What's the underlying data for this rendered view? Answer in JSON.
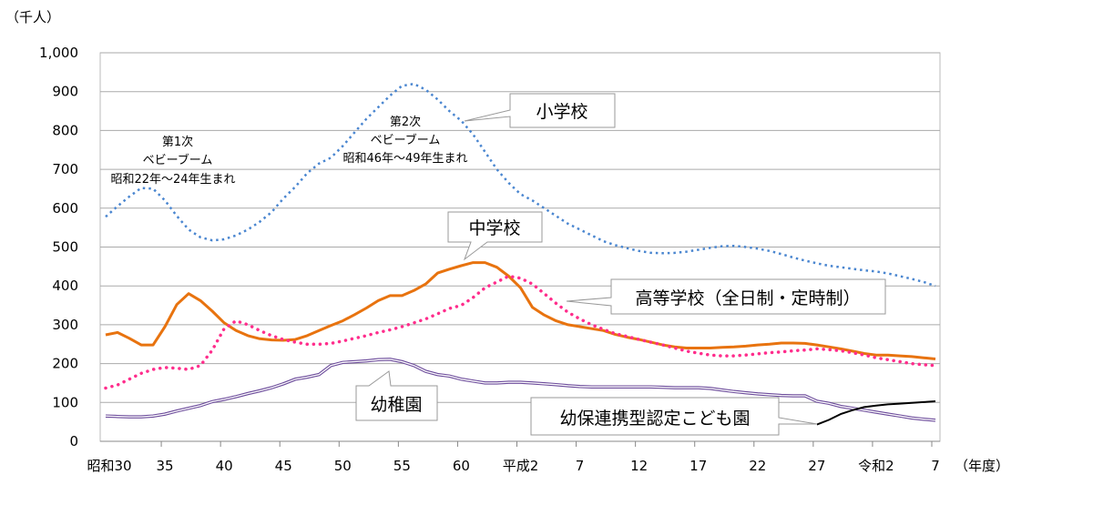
{
  "chart_data": {
    "type": "line",
    "unit_label": "（千人）",
    "xlabel": "（年度）",
    "ylim": [
      0,
      1000
    ],
    "yticks": [
      0,
      100,
      200,
      300,
      400,
      500,
      600,
      700,
      800,
      900,
      1000
    ],
    "ytick_labels": [
      "0",
      "100",
      "200",
      "300",
      "400",
      "500",
      "600",
      "700",
      "800",
      "900",
      "1,000"
    ],
    "grid": "horizontal",
    "xlim": [
      1955,
      2025
    ],
    "xticks": [
      1955,
      1960,
      1965,
      1970,
      1975,
      1980,
      1985,
      1990,
      1995,
      2000,
      2005,
      2010,
      2015,
      2020,
      2025
    ],
    "xtick_labels": [
      "昭和30",
      "35",
      "40",
      "45",
      "50",
      "55",
      "60",
      "平成2",
      "7",
      "12",
      "17",
      "22",
      "27",
      "令和2",
      "7"
    ],
    "years_first": 1955,
    "series": [
      {
        "name": "小学校",
        "color": "#4a86d0",
        "style": "dotted",
        "values": [
          578,
          605,
          630,
          652,
          650,
          620,
          580,
          545,
          525,
          517,
          520,
          530,
          545,
          565,
          590,
          625,
          655,
          690,
          715,
          730,
          760,
          795,
          830,
          860,
          890,
          915,
          920,
          905,
          880,
          850,
          825,
          790,
          745,
          700,
          665,
          636,
          620,
          600,
          580,
          560,
          545,
          530,
          515,
          505,
          497,
          490,
          485,
          484,
          485,
          488,
          493,
          498,
          502,
          503,
          500,
          496,
          490,
          482,
          473,
          465,
          458,
          452,
          448,
          444,
          440,
          437,
          432,
          425,
          418,
          410,
          400
        ]
      },
      {
        "name": "中学校",
        "color": "#e8730f",
        "style": "solid",
        "values": [
          274,
          280,
          265,
          248,
          248,
          295,
          352,
          380,
          362,
          335,
          305,
          285,
          272,
          264,
          261,
          260,
          262,
          272,
          285,
          298,
          310,
          326,
          343,
          362,
          375,
          375,
          388,
          405,
          433,
          443,
          452,
          460,
          460,
          448,
          425,
          395,
          345,
          325,
          310,
          300,
          295,
          290,
          285,
          275,
          268,
          262,
          255,
          248,
          243,
          240,
          240,
          240,
          242,
          243,
          245,
          248,
          250,
          253,
          253,
          252,
          248,
          243,
          238,
          232,
          226,
          222,
          222,
          220,
          218,
          215,
          212
        ]
      },
      {
        "name": "高等学校（全日制・定時制）",
        "color": "#ff2d8c",
        "style": "dotted-round",
        "values": [
          137,
          145,
          160,
          175,
          185,
          190,
          188,
          185,
          195,
          235,
          290,
          310,
          300,
          285,
          272,
          262,
          255,
          250,
          250,
          252,
          258,
          265,
          272,
          280,
          287,
          295,
          305,
          315,
          328,
          342,
          350,
          370,
          395,
          410,
          425,
          420,
          405,
          380,
          355,
          332,
          315,
          300,
          288,
          277,
          270,
          262,
          255,
          248,
          240,
          232,
          227,
          222,
          220,
          220,
          222,
          225,
          228,
          230,
          233,
          235,
          238,
          236,
          233,
          228,
          222,
          215,
          210,
          205,
          200,
          197,
          195
        ]
      },
      {
        "name": "幼稚園",
        "color": "#6b4a9a",
        "style": "double",
        "values": [
          65,
          64,
          63,
          63,
          65,
          70,
          78,
          85,
          92,
          102,
          108,
          115,
          123,
          130,
          138,
          148,
          160,
          165,
          172,
          195,
          203,
          205,
          207,
          210,
          211,
          205,
          195,
          180,
          172,
          168,
          160,
          155,
          150,
          150,
          152,
          152,
          150,
          148,
          146,
          143,
          141,
          140,
          140,
          140,
          140,
          140,
          140,
          139,
          138,
          138,
          138,
          136,
          132,
          128,
          125,
          122,
          120,
          118,
          117,
          117,
          103,
          98,
          90,
          85,
          80,
          75,
          70,
          65,
          60,
          57,
          54
        ]
      },
      {
        "name": "幼保連携型認定こども園",
        "color": "#000000",
        "style": "solid",
        "start_year": 2015,
        "values": [
          43,
          55,
          70,
          80,
          88,
          92,
          95,
          97,
          99,
          101,
          103
        ]
      }
    ],
    "annotations": {
      "boom1": [
        "第1次",
        "ベビーブーム",
        "昭和22年～24年生まれ"
      ],
      "boom2": [
        "第2次",
        "ベビーブーム",
        "昭和46年～49年生まれ"
      ]
    }
  }
}
